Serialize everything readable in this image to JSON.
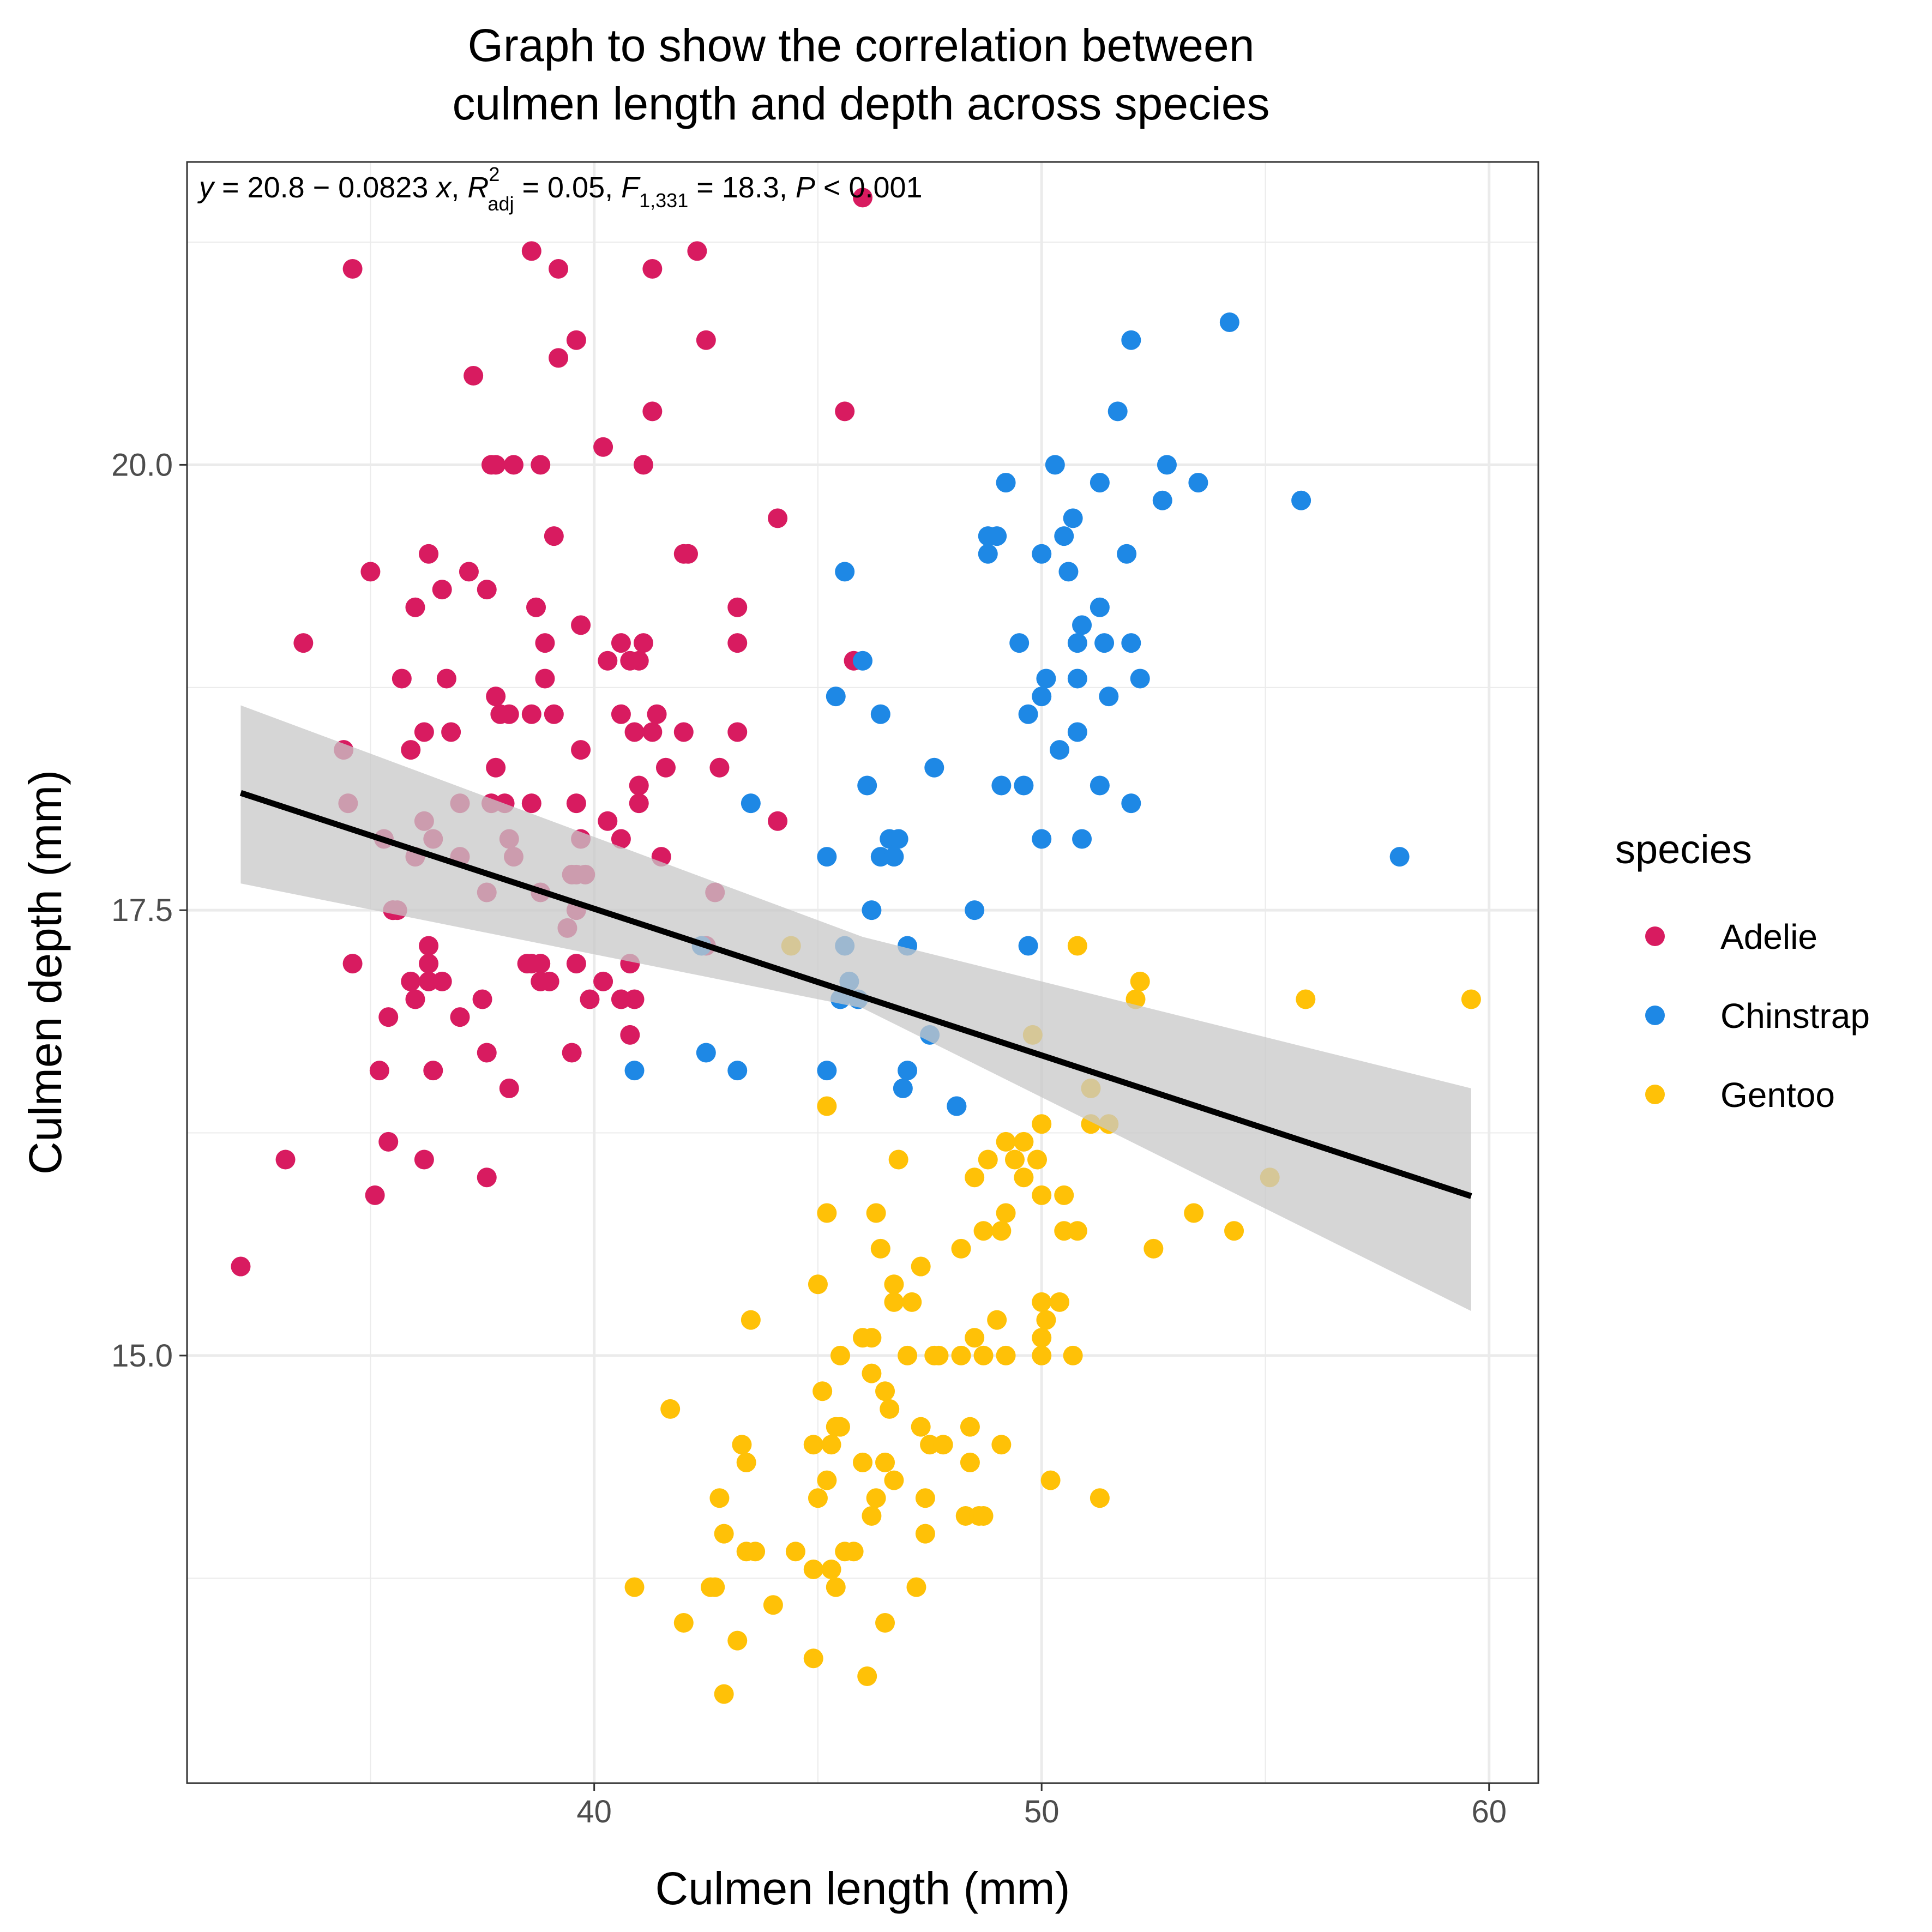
{
  "chart_data": {
    "type": "scatter",
    "title": [
      "Graph to show the correlation between",
      "culmen length and depth across species"
    ],
    "xlabel": "Culmen length (mm)",
    "ylabel": "Culmen depth (mm)",
    "xlim": [
      30.9,
      61.1
    ],
    "ylim": [
      12.6,
      21.7
    ],
    "xticks": [
      40,
      50,
      60
    ],
    "xtick_labels": [
      "40",
      "50",
      "60"
    ],
    "yticks": [
      15,
      17.5,
      20
    ],
    "ytick_labels": [
      "15.0",
      "17.5",
      "20.0"
    ],
    "grid": true,
    "legend": {
      "title": "species",
      "position": "right",
      "entries": [
        {
          "label": "Adelie",
          "color": "#d81b60"
        },
        {
          "label": "Chinstrap",
          "color": "#1e88e5"
        },
        {
          "label": "Gentoo",
          "color": "#ffc107"
        }
      ]
    },
    "annotation": {
      "y": "y",
      "eq_rest": " = 20.8 − 0.0823 ",
      "x": "x",
      "comma": ",",
      "r": "R",
      "r_sup": "2",
      "r_sub": "adj",
      "r_rest": " = 0.05, ",
      "f": "F",
      "f_sub": "1,331",
      "f_rest": " = 18.3, ",
      "p": "P",
      "p_rest": " < 0.001"
    },
    "regression": {
      "intercept": 20.8,
      "slope": -0.0823,
      "x_range": [
        32.1,
        59.6
      ],
      "ci_lower": [
        [
          32.1,
          17.65
        ],
        [
          46,
          16.95
        ],
        [
          59.6,
          15.25
        ]
      ],
      "ci_upper": [
        [
          32.1,
          18.65
        ],
        [
          46,
          17.35
        ],
        [
          59.6,
          16.5
        ]
      ],
      "line_color": "#000000",
      "band_color": "#c8c8c8"
    },
    "series": [
      {
        "name": "Adelie",
        "color": "#d81b60",
        "x": [
          34.6,
          38.6,
          39.2,
          41.3,
          42.3,
          46.0,
          39.6,
          39.2,
          42.5,
          37.3,
          41.3,
          45.6,
          40.2,
          37.7,
          37.8,
          38.2,
          38.8,
          41.1,
          44.1,
          39.1,
          36.3,
          37.2,
          35.0,
          37.6,
          42.1,
          42.0,
          36.0,
          36.6,
          38.7,
          43.2,
          33.5,
          38.9,
          40.6,
          41.1,
          39.7,
          40.3,
          41.0,
          40.8,
          43.2,
          45.8,
          35.7,
          36.7,
          37.8,
          38.6,
          38.9,
          39.1,
          37.9,
          38.1,
          40.6,
          41.4,
          41.3,
          40.9,
          43.2,
          42.0,
          36.2,
          36.8,
          35.9,
          34.4,
          39.7,
          42.8,
          37.8,
          41.6,
          41.0,
          41.0,
          40.3,
          39.6,
          38.6,
          37.0,
          37.7,
          38.0,
          44.1,
          35.3,
          34.5,
          36.2,
          36.4,
          38.1,
          38.2,
          39.7,
          41.5,
          39.6,
          40.6,
          42.7,
          35.5,
          36.0,
          39.5,
          39.8,
          39.6,
          39.4,
          38.8,
          36.3,
          37.0,
          37.6,
          42.5,
          36.3,
          38.5,
          38.8,
          39.0,
          39.6,
          40.2,
          40.8,
          36.0,
          36.6,
          34.6,
          37.0,
          37.5,
          38.6,
          39.9,
          38.8,
          40.9,
          35.2,
          35.4,
          35.9,
          36.3,
          37.6,
          39.5,
          36.4,
          38.1,
          35.4,
          36.2,
          33.1,
          35.1,
          37.6,
          32.1,
          35.5,
          35.6,
          40.6,
          40.8
        ],
        "y": [
          21.1,
          21.2,
          21.1,
          21.1,
          21.2,
          21.5,
          20.7,
          20.6,
          20.7,
          20.5,
          20.3,
          20.3,
          20.1,
          20.0,
          20.0,
          20.0,
          20.0,
          20.0,
          19.7,
          19.6,
          19.5,
          19.4,
          19.4,
          19.3,
          19.5,
          19.5,
          19.2,
          19.3,
          19.2,
          19.2,
          19.0,
          19.0,
          19.0,
          19.0,
          19.1,
          18.9,
          18.9,
          18.9,
          19.0,
          18.9,
          18.8,
          18.8,
          18.7,
          18.6,
          18.8,
          18.6,
          18.6,
          18.6,
          18.6,
          18.6,
          18.5,
          18.5,
          18.5,
          18.5,
          18.5,
          18.5,
          18.4,
          18.4,
          18.4,
          18.3,
          18.3,
          18.3,
          18.2,
          18.1,
          18.0,
          18.1,
          18.1,
          18.1,
          18.1,
          18.1,
          18.0,
          17.9,
          18.1,
          18.0,
          17.9,
          17.9,
          17.8,
          17.9,
          17.8,
          17.7,
          17.9,
          17.6,
          17.5,
          17.8,
          17.7,
          17.7,
          17.5,
          17.4,
          17.6,
          17.3,
          17.8,
          17.6,
          17.3,
          17.2,
          17.2,
          17.2,
          17.1,
          17.2,
          17.1,
          17.2,
          17.0,
          17.1,
          17.2,
          16.9,
          17.0,
          17.2,
          17.0,
          17.1,
          17.0,
          16.6,
          16.9,
          17.1,
          17.1,
          16.7,
          16.7,
          16.6,
          16.5,
          16.2,
          16.1,
          16.1,
          15.9,
          16.0,
          15.5,
          17.5,
          17.5,
          17.0,
          16.8
        ]
      },
      {
        "name": "Chinstrap",
        "color": "#1e88e5",
        "x": [
          54.2,
          52.0,
          51.7,
          50.3,
          52.8,
          49.2,
          51.3,
          53.5,
          52.7,
          55.8,
          50.7,
          48.8,
          49.0,
          50.5,
          50.0,
          51.9,
          48.8,
          50.6,
          45.6,
          51.3,
          50.9,
          49.5,
          50.8,
          51.4,
          52.0,
          46.0,
          50.8,
          52.2,
          50.1,
          45.4,
          51.5,
          50.0,
          46.4,
          49.7,
          50.8,
          50.4,
          47.6,
          46.1,
          49.1,
          49.6,
          51.3,
          52.0,
          43.5,
          46.6,
          46.8,
          45.2,
          46.4,
          46.7,
          50.0,
          50.9,
          58.0,
          46.2,
          48.5,
          45.6,
          42.4,
          47.0,
          49.7,
          45.5,
          45.9,
          45.7,
          47.5,
          48.1,
          42.5,
          43.2,
          45.2,
          47.0,
          46.9,
          40.9,
          48.1
        ],
        "y": [
          20.8,
          20.7,
          20.3,
          20.0,
          20.0,
          19.9,
          19.9,
          19.9,
          19.8,
          19.8,
          19.7,
          19.6,
          19.6,
          19.6,
          19.5,
          19.5,
          19.5,
          19.4,
          19.4,
          19.2,
          19.1,
          19.0,
          19.0,
          19.0,
          19.0,
          18.9,
          18.8,
          18.8,
          18.8,
          18.7,
          18.7,
          18.7,
          18.6,
          18.6,
          18.5,
          18.4,
          18.3,
          18.2,
          18.2,
          18.2,
          18.2,
          18.1,
          18.1,
          17.9,
          17.9,
          17.8,
          17.8,
          17.8,
          17.9,
          17.9,
          17.8,
          17.5,
          17.5,
          17.3,
          17.3,
          17.3,
          17.3,
          17.0,
          17.0,
          17.1,
          16.8,
          16.4,
          16.7,
          16.6,
          16.6,
          16.6,
          16.5,
          16.6,
          16.4
        ]
      },
      {
        "name": "Gentoo",
        "color": "#ffc107",
        "x": [
          50.8,
          44.4,
          52.2,
          52.1,
          55.9,
          59.6,
          49.8,
          51.1,
          51.1,
          51.5,
          45.2,
          50.0,
          49.2,
          49.6,
          48.8,
          49.9,
          48.5,
          49.4,
          46.8,
          49.6,
          55.1,
          50.0,
          50.5,
          49.2,
          45.2,
          46.3,
          53.4,
          50.5,
          50.8,
          48.7,
          54.3,
          49.1,
          52.5,
          46.4,
          48.2,
          47.3,
          45.0,
          46.7,
          47.1,
          50.0,
          50.4,
          43.5,
          46.7,
          49.0,
          50.1,
          50.0,
          46.0,
          48.5,
          48.7,
          46.2,
          47.0,
          47.6,
          47.7,
          48.2,
          49.2,
          50.0,
          50.7,
          45.5,
          46.2,
          46.5,
          41.7,
          45.1,
          46.6,
          44.9,
          45.5,
          45.4,
          47.3,
          47.5,
          48.4,
          49.1,
          43.3,
          45.3,
          47.8,
          48.4,
          43.4,
          45.2,
          46.0,
          46.5,
          46.7,
          42.8,
          45.0,
          46.3,
          47.4,
          48.3,
          50.2,
          51.3,
          42.9,
          44.5,
          46.2,
          47.4,
          48.6,
          48.7,
          43.4,
          43.6,
          45.6,
          45.8,
          44.9,
          45.3,
          40.9,
          42.6,
          42.7,
          45.4,
          47.2,
          44.0,
          42.0,
          46.5,
          43.2,
          44.9,
          46.1,
          42.9
        ],
        "y": [
          17.3,
          17.3,
          17.1,
          17.0,
          17.0,
          17.0,
          16.8,
          16.5,
          16.3,
          16.3,
          16.4,
          16.3,
          16.2,
          16.2,
          16.1,
          16.1,
          16.0,
          16.1,
          16.1,
          16.0,
          16.0,
          15.9,
          15.9,
          15.8,
          15.8,
          15.8,
          15.8,
          15.7,
          15.7,
          15.7,
          15.7,
          15.7,
          15.6,
          15.6,
          15.6,
          15.5,
          15.4,
          15.4,
          15.3,
          15.3,
          15.3,
          15.2,
          15.3,
          15.2,
          15.2,
          15.1,
          15.1,
          15.1,
          15.0,
          15.1,
          15.0,
          15.0,
          15.0,
          15.0,
          15.0,
          15.0,
          15.0,
          15.0,
          14.9,
          14.8,
          14.7,
          14.8,
          14.7,
          14.5,
          14.6,
          14.6,
          14.6,
          14.5,
          14.6,
          14.5,
          14.5,
          14.5,
          14.5,
          14.4,
          14.4,
          14.3,
          14.4,
          14.4,
          14.3,
          14.2,
          14.2,
          14.2,
          14.2,
          14.1,
          14.3,
          14.2,
          14.0,
          13.9,
          14.1,
          14.0,
          14.1,
          14.1,
          13.9,
          13.9,
          13.9,
          13.9,
          13.8,
          13.8,
          13.7,
          13.7,
          13.7,
          13.7,
          13.7,
          13.6,
          13.5,
          13.5,
          13.4,
          13.3,
          13.2,
          13.1
        ]
      }
    ]
  }
}
